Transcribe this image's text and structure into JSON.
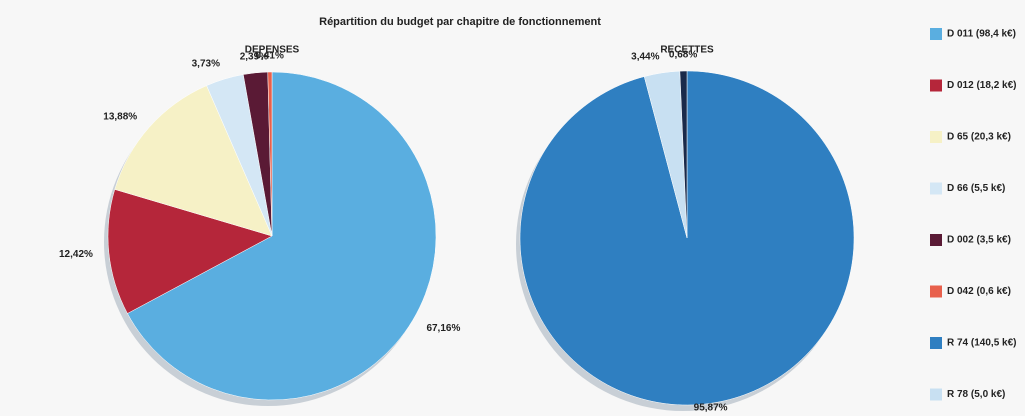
{
  "chart_data": [
    {
      "type": "pie",
      "title": "Répartition du budget par chapitre de fonctionnement",
      "subtitle": "DEPENSES",
      "categories": [
        "D 011 (98,4 k€)",
        "D 012 (18,2 k€)",
        "D 65 (20,3 k€)",
        "D 66 (5,5 k€)",
        "D 002 (3,5 k€)",
        "D 042 (0,6 k€)"
      ],
      "values": [
        67.16,
        12.42,
        13.88,
        3.73,
        2.39,
        0.41
      ],
      "value_labels": [
        "67,16%",
        "12,42%",
        "13,88%",
        "3,73%",
        "2,39%",
        "0,41%"
      ],
      "colors": [
        "#5aaee0",
        "#b5263a",
        "#f6f1c6",
        "#d4e7f5",
        "#5a1a35",
        "#e8604c"
      ]
    },
    {
      "type": "pie",
      "subtitle": "RECETTES",
      "categories": [
        "R 74 (140,5 k€)",
        "R 78 (5,0 k€)",
        null
      ],
      "values": [
        95.87,
        3.44,
        0.68
      ],
      "value_labels": [
        "95,87%",
        "3,44%",
        "0,68%"
      ],
      "colors": [
        "#2f7fc1",
        "#c8e0f2",
        "#1a2a4a"
      ]
    }
  ]
}
